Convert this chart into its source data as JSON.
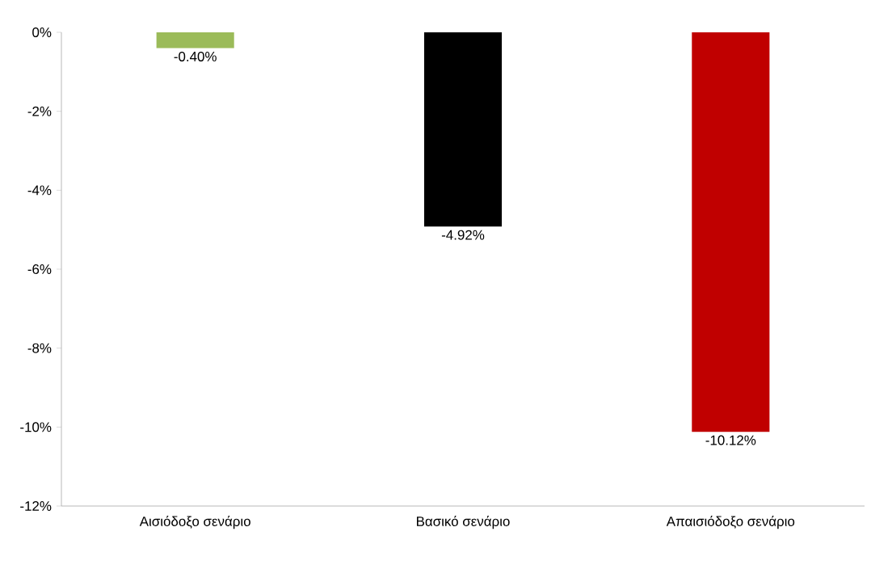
{
  "chart_data": {
    "type": "bar",
    "categories": [
      "Αισιόδοξο σενάριο",
      "Βασικό σενάριο",
      "Απαισιόδοξο σενάριο"
    ],
    "values": [
      -0.4,
      -4.92,
      -10.12
    ],
    "colors": [
      "#9bbb59",
      "#000000",
      "#c00000"
    ],
    "value_labels": [
      "-0.40%",
      "-4.92%",
      "-10.12%"
    ],
    "ylim": [
      -12,
      0
    ],
    "yticks": [
      {
        "value": 0,
        "label": "0%"
      },
      {
        "value": -2,
        "label": "-2%"
      },
      {
        "value": -4,
        "label": "-4%"
      },
      {
        "value": -6,
        "label": "-6%"
      },
      {
        "value": -8,
        "label": "-8%"
      },
      {
        "value": -10,
        "label": "-10%"
      },
      {
        "value": -12,
        "label": "-12%"
      }
    ],
    "grid": false
  }
}
